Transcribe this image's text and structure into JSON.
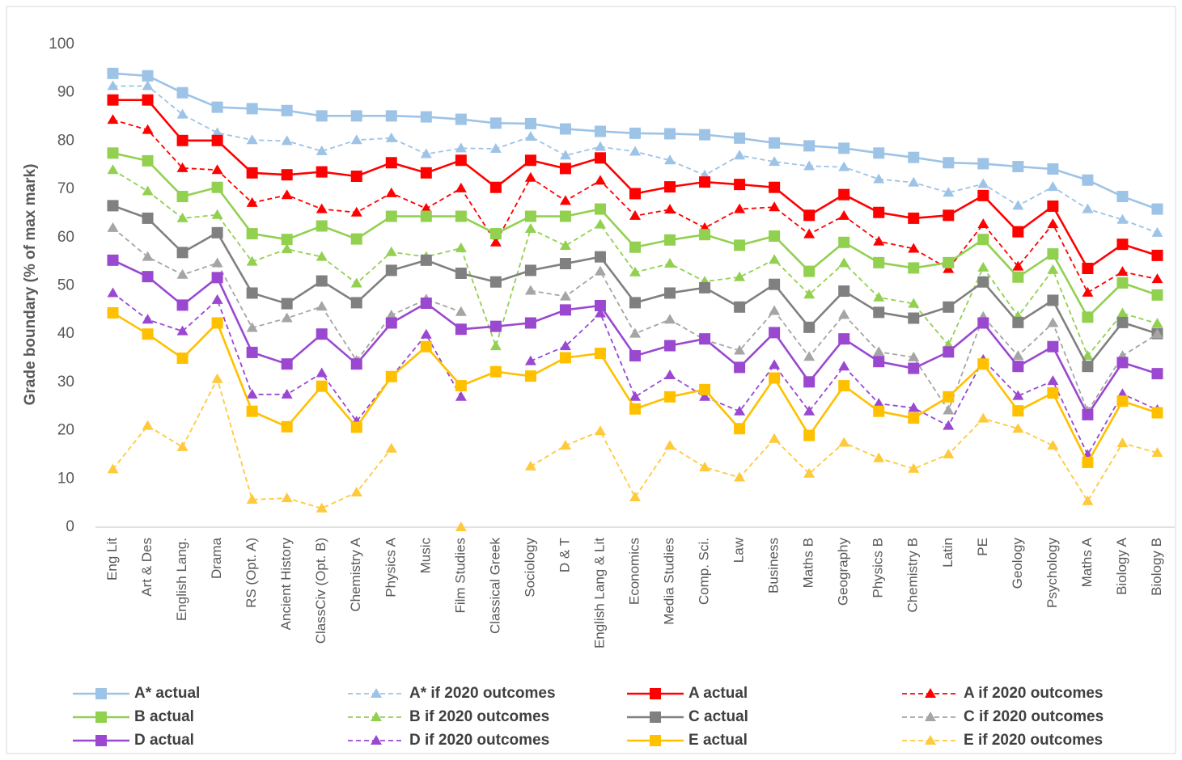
{
  "chart_data": {
    "type": "line",
    "y_label": "Grade boundary (% of max mark)",
    "ylim": [
      0,
      100
    ],
    "yticks": [
      0,
      10,
      20,
      30,
      40,
      50,
      60,
      70,
      80,
      90,
      100
    ],
    "categories": [
      "Eng Lit",
      "Art & Des",
      "English Lang.",
      "Drama",
      "RS (Opt. A)",
      "Ancient History",
      "ClassCiv (Opt. B)",
      "Chemistry A",
      "Physics A",
      "Music",
      "Film Studies",
      "Classical Greek",
      "Sociology",
      "D & T",
      "English Lang & Lit",
      "Economics",
      "Media Studies",
      "Comp. Sci.",
      "Law",
      "Business",
      "Maths B",
      "Geography",
      "Physics B",
      "Chemistry B",
      "Latin",
      "PE",
      "Geology",
      "Psychology",
      "Maths A",
      "Biology A",
      "Biology B"
    ],
    "series": [
      {
        "name": "A* actual",
        "color": "#9dc3e6",
        "line_style": "solid",
        "marker": "square",
        "values": [
          94,
          93.5,
          90,
          87,
          86.7,
          86.3,
          85.2,
          85.2,
          85.2,
          85,
          84.5,
          83.7,
          83.6,
          82.5,
          82,
          81.6,
          81.5,
          81.3,
          80.6,
          79.6,
          79,
          78.5,
          77.5,
          76.6,
          75.5,
          75.3,
          74.7,
          74.2,
          71.9,
          68.5,
          65.9
        ]
      },
      {
        "name": "A* if 2020 outcomes",
        "color": "#9dc3e6",
        "line_style": "dashed",
        "marker": "triangle",
        "values": [
          91.4,
          91.4,
          85.5,
          81.7,
          80.2,
          80,
          77.9,
          80.2,
          80.6,
          77.3,
          78.5,
          78.4,
          80.9,
          77,
          78.8,
          77.8,
          76,
          72.9,
          77,
          75.7,
          74.8,
          74.6,
          72.1,
          71.4,
          69.3,
          71.1,
          66.6,
          70.5,
          65.9,
          63.7,
          61
        ]
      },
      {
        "name": "A actual",
        "color": "#ff0000",
        "line_style": "solid",
        "marker": "square",
        "values": [
          88.5,
          88.5,
          80.1,
          80.1,
          73.4,
          73,
          73.6,
          72.7,
          75.5,
          73.4,
          76,
          70.4,
          76,
          74.3,
          76.5,
          69.1,
          70.5,
          71.5,
          71,
          70.4,
          64.6,
          68.9,
          65.2,
          64,
          64.6,
          68.7,
          61.2,
          66.5,
          53.6,
          58.6,
          56.3
        ]
      },
      {
        "name": "A if 2020 outcomes",
        "color": "#ff0000",
        "line_style": "dashed",
        "marker": "triangle",
        "values": [
          84.4,
          82.3,
          74.4,
          74,
          67.2,
          68.8,
          65.9,
          65.2,
          69.2,
          66,
          70.2,
          59,
          72.4,
          67.6,
          71.8,
          64.5,
          65.8,
          62,
          65.9,
          66.3,
          60.7,
          64.5,
          59.2,
          57.7,
          53.5,
          62.8,
          54,
          62.8,
          48.6,
          52.9,
          51.4
        ]
      },
      {
        "name": "B actual",
        "color": "#92d050",
        "line_style": "solid",
        "marker": "square",
        "values": [
          77.5,
          75.9,
          68.5,
          70.4,
          60.8,
          59.6,
          62.4,
          59.7,
          64.4,
          64.4,
          64.4,
          60.8,
          64.4,
          64.4,
          65.9,
          58,
          59.5,
          60.6,
          58.4,
          60.3,
          53,
          59,
          54.8,
          53.7,
          54.8,
          59.6,
          51.8,
          56.6,
          43.5,
          50.6,
          48.1
        ]
      },
      {
        "name": "B if 2020 outcomes",
        "color": "#92d050",
        "line_style": "dashed",
        "marker": "triangle",
        "values": [
          74,
          69.6,
          64,
          64.7,
          55,
          57.6,
          56,
          50.5,
          57,
          56,
          57.8,
          37.5,
          61.8,
          58.3,
          62.7,
          52.8,
          54.6,
          50.9,
          51.8,
          55.4,
          48.2,
          54.7,
          47.6,
          46.3,
          37.7,
          53.8,
          43.7,
          53.3,
          35.5,
          44.3,
          42.2
        ]
      },
      {
        "name": "C actual",
        "color": "#808080",
        "line_style": "solid",
        "marker": "square",
        "values": [
          66.6,
          64,
          56.9,
          61,
          48.5,
          46.3,
          51,
          46.5,
          53.2,
          55.3,
          52.6,
          50.8,
          53.2,
          54.6,
          56,
          46.5,
          48.5,
          49.6,
          45.6,
          50.3,
          41.4,
          48.9,
          44.5,
          43.3,
          45.6,
          50.8,
          42.4,
          47,
          33.3,
          42.4,
          40.1
        ]
      },
      {
        "name": "C if 2020 outcomes",
        "color": "#a5a5a5",
        "line_style": "dashed",
        "marker": "triangle",
        "values": [
          62,
          56,
          52.3,
          54.7,
          41.3,
          43.3,
          45.7,
          34.5,
          43.9,
          47.2,
          44.6,
          null,
          49,
          47.8,
          53,
          40.1,
          43,
          38.8,
          36.6,
          44.8,
          35.3,
          44,
          36.3,
          35.2,
          24.2,
          43.6,
          35.5,
          42.3,
          24,
          35.5,
          40
        ]
      },
      {
        "name": "D actual",
        "color": "#9a48d0",
        "line_style": "solid",
        "marker": "square",
        "values": [
          55.3,
          51.9,
          46,
          51.7,
          36.2,
          33.8,
          40,
          33.8,
          42.3,
          46.4,
          41,
          41.6,
          42.3,
          45,
          45.9,
          35.5,
          37.6,
          39,
          33.1,
          40.3,
          30.1,
          39,
          34.3,
          32.9,
          36.3,
          42.3,
          33.3,
          37.4,
          23.3,
          34.1,
          31.8
        ]
      },
      {
        "name": "D if 2020 outcomes",
        "color": "#9a48d0",
        "line_style": "dashed",
        "marker": "triangle",
        "values": [
          48.5,
          43,
          40.6,
          47.1,
          27.5,
          27.5,
          31.9,
          21.9,
          31.1,
          39.9,
          27,
          null,
          34.4,
          37.5,
          44.3,
          27,
          31.5,
          27,
          24,
          33.6,
          24,
          33.3,
          25.6,
          24.7,
          21,
          34.7,
          27.2,
          30.3,
          15,
          27.6,
          24.3
        ]
      },
      {
        "name": "E actual",
        "color": "#ffc000",
        "line_style": "solid",
        "marker": "square",
        "values": [
          44.4,
          40,
          35,
          42.3,
          24,
          20.8,
          29.2,
          20.7,
          31.2,
          37.4,
          29.3,
          32.2,
          31.3,
          35.1,
          36,
          24.5,
          27,
          28.5,
          20.4,
          30.9,
          19,
          29.3,
          24,
          22.6,
          27,
          33.8,
          24.1,
          27.8,
          13.4,
          26.1,
          23.7
        ]
      },
      {
        "name": "E if 2020 outcomes",
        "color": "#ffc93c",
        "line_style": "dashed",
        "marker": "triangle",
        "values": [
          12,
          21,
          16.6,
          30.7,
          5.7,
          6,
          3.9,
          7.2,
          16.3,
          null,
          0,
          null,
          12.6,
          16.9,
          19.9,
          6.2,
          16.9,
          12.4,
          10.3,
          18.3,
          11.1,
          17.5,
          14.3,
          12.1,
          15.1,
          22.5,
          20.4,
          16.9,
          5.4,
          17.4,
          15.4
        ]
      }
    ],
    "legend_columns": 4
  }
}
